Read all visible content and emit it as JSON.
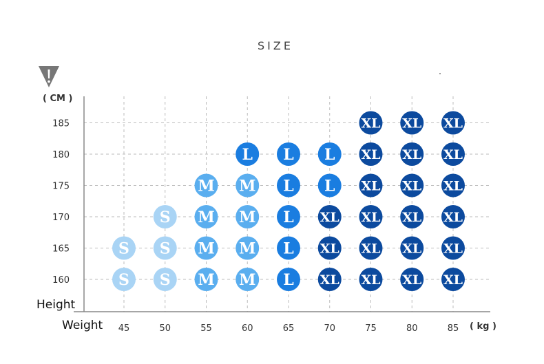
{
  "chart_data": {
    "type": "table",
    "title": "SIZE",
    "y_unit": "( CM )",
    "x_unit": "( kg )",
    "ylabel": "Height",
    "xlabel": "Weight",
    "x": [
      45,
      50,
      55,
      60,
      65,
      70,
      75,
      80,
      85
    ],
    "y": [
      160,
      165,
      170,
      175,
      180,
      185
    ],
    "grid": true,
    "cells": [
      {
        "height": 185,
        "weight": 75,
        "size": "XL"
      },
      {
        "height": 185,
        "weight": 80,
        "size": "XL"
      },
      {
        "height": 185,
        "weight": 85,
        "size": "XL"
      },
      {
        "height": 180,
        "weight": 60,
        "size": "L"
      },
      {
        "height": 180,
        "weight": 65,
        "size": "L"
      },
      {
        "height": 180,
        "weight": 70,
        "size": "L"
      },
      {
        "height": 180,
        "weight": 75,
        "size": "XL"
      },
      {
        "height": 180,
        "weight": 80,
        "size": "XL"
      },
      {
        "height": 180,
        "weight": 85,
        "size": "XL"
      },
      {
        "height": 175,
        "weight": 55,
        "size": "M"
      },
      {
        "height": 175,
        "weight": 60,
        "size": "M"
      },
      {
        "height": 175,
        "weight": 65,
        "size": "L"
      },
      {
        "height": 175,
        "weight": 70,
        "size": "L"
      },
      {
        "height": 175,
        "weight": 75,
        "size": "XL"
      },
      {
        "height": 175,
        "weight": 80,
        "size": "XL"
      },
      {
        "height": 175,
        "weight": 85,
        "size": "XL"
      },
      {
        "height": 170,
        "weight": 50,
        "size": "S"
      },
      {
        "height": 170,
        "weight": 55,
        "size": "M"
      },
      {
        "height": 170,
        "weight": 60,
        "size": "M"
      },
      {
        "height": 170,
        "weight": 65,
        "size": "L"
      },
      {
        "height": 170,
        "weight": 70,
        "size": "XL"
      },
      {
        "height": 170,
        "weight": 75,
        "size": "XL"
      },
      {
        "height": 170,
        "weight": 80,
        "size": "XL"
      },
      {
        "height": 170,
        "weight": 85,
        "size": "XL"
      },
      {
        "height": 165,
        "weight": 45,
        "size": "S"
      },
      {
        "height": 165,
        "weight": 50,
        "size": "S"
      },
      {
        "height": 165,
        "weight": 55,
        "size": "M"
      },
      {
        "height": 165,
        "weight": 60,
        "size": "M"
      },
      {
        "height": 165,
        "weight": 65,
        "size": "L"
      },
      {
        "height": 165,
        "weight": 70,
        "size": "XL"
      },
      {
        "height": 165,
        "weight": 75,
        "size": "XL"
      },
      {
        "height": 165,
        "weight": 80,
        "size": "XL"
      },
      {
        "height": 165,
        "weight": 85,
        "size": "XL"
      },
      {
        "height": 160,
        "weight": 45,
        "size": "S"
      },
      {
        "height": 160,
        "weight": 50,
        "size": "S"
      },
      {
        "height": 160,
        "weight": 55,
        "size": "M"
      },
      {
        "height": 160,
        "weight": 60,
        "size": "M"
      },
      {
        "height": 160,
        "weight": 65,
        "size": "L"
      },
      {
        "height": 160,
        "weight": 70,
        "size": "XL"
      },
      {
        "height": 160,
        "weight": 75,
        "size": "XL"
      },
      {
        "height": 160,
        "weight": 80,
        "size": "XL"
      },
      {
        "height": 160,
        "weight": 85,
        "size": "XL"
      }
    ],
    "size_colors": {
      "S": "#a9d4f5",
      "M": "#5aaeef",
      "L": "#1a7de0",
      "XL": "#0c4a9e"
    }
  },
  "logo": {
    "icon": "warning-shield-icon",
    "color": "#777777"
  }
}
